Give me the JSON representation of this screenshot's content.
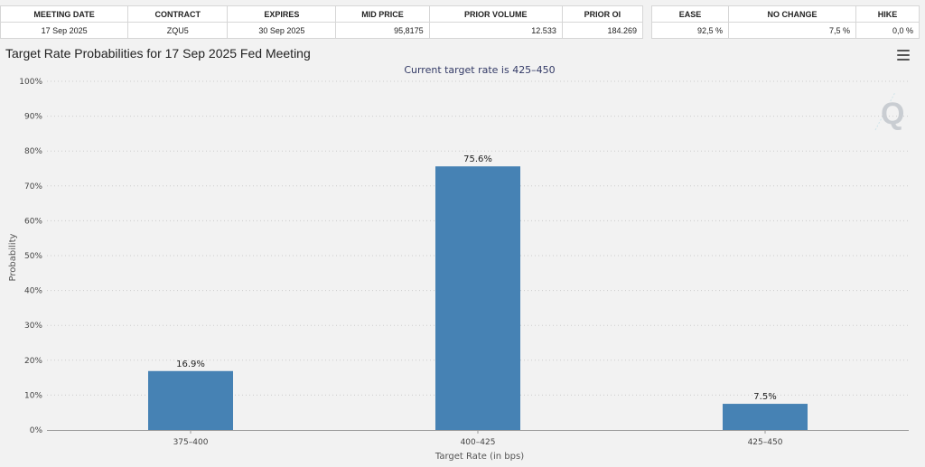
{
  "contract_table": {
    "headers": [
      "MEETING DATE",
      "CONTRACT",
      "EXPIRES",
      "MID PRICE",
      "PRIOR VOLUME",
      "PRIOR OI"
    ],
    "row": [
      "17 Sep 2025",
      "ZQU5",
      "30 Sep 2025",
      "95,8175",
      "12.533",
      "184.269"
    ]
  },
  "probability_table": {
    "headers": [
      "EASE",
      "NO CHANGE",
      "HIKE"
    ],
    "row": [
      "92,5 %",
      "7,5 %",
      "0,0 %"
    ]
  },
  "chart_title": "Target Rate Probabilities for 17 Sep 2025 Fed Meeting",
  "watermark_letter": "Q",
  "colors": {
    "bar": "#4682b4",
    "grid": "#cccccc",
    "background": "#f2f2f2"
  },
  "chart_data": {
    "type": "bar",
    "title": "Target Rate Probabilities for 17 Sep 2025 Fed Meeting",
    "subtitle": "Current target rate is 425–450",
    "xlabel": "Target Rate (in bps)",
    "ylabel": "Probability",
    "categories": [
      "375–400",
      "400–425",
      "425–450"
    ],
    "values": [
      16.9,
      75.6,
      7.5
    ],
    "data_labels": [
      "16.9%",
      "75.6%",
      "7.5%"
    ],
    "ylim": [
      0,
      100
    ],
    "yticks": [
      0,
      10,
      20,
      30,
      40,
      50,
      60,
      70,
      80,
      90,
      100
    ],
    "ytick_labels": [
      "0%",
      "10%",
      "20%",
      "30%",
      "40%",
      "50%",
      "60%",
      "70%",
      "80%",
      "90%",
      "100%"
    ],
    "grid": true,
    "legend": "none"
  }
}
